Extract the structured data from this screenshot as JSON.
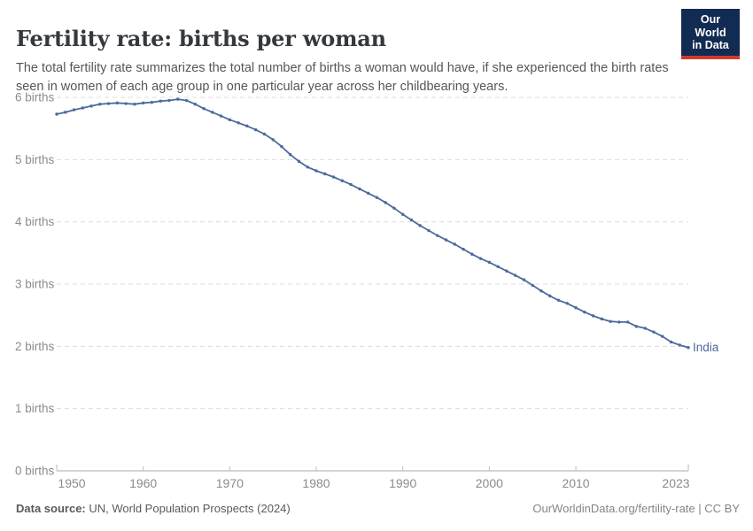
{
  "header": {
    "title": "Fertility rate: births per woman",
    "subtitle": "The total fertility rate summarizes the total number of births a woman would have, if she experienced the birth rates seen in women of each age group in one particular year across her childbearing years."
  },
  "logo": {
    "line1": "Our World",
    "line2": "in Data",
    "bg_color": "#122b52",
    "accent_color": "#cf3a31"
  },
  "footer": {
    "source_label": "Data source:",
    "source_value": " UN, World Population Prospects (2024)",
    "link_text": "OurWorldinData.org/fertility-rate",
    "separator": " | ",
    "license": "CC BY"
  },
  "colors": {
    "line": "#4c6a9c",
    "grid": "#dcdcdc",
    "axis": "#a8a8a8",
    "tick_text": "#8b8b8b"
  },
  "chart_data": {
    "type": "line",
    "title": "Fertility rate: births per woman",
    "entity": "India",
    "end_label": "India",
    "xlabel": "",
    "ylabel": "",
    "ylim": [
      0,
      6
    ],
    "xlim": [
      1950,
      2023
    ],
    "grid": "horizontal dashed",
    "legend_position": "end-of-line label",
    "y_ticks": [
      0,
      1,
      2,
      3,
      4,
      5,
      6
    ],
    "y_tick_labels": [
      "0 births",
      "1 births",
      "2 births",
      "3 births",
      "4 births",
      "5 births",
      "6 births"
    ],
    "x_ticks": [
      1950,
      1960,
      1970,
      1980,
      1990,
      2000,
      2010,
      2023
    ],
    "x": [
      1950,
      1951,
      1952,
      1953,
      1954,
      1955,
      1956,
      1957,
      1958,
      1959,
      1960,
      1961,
      1962,
      1963,
      1964,
      1965,
      1966,
      1967,
      1968,
      1969,
      1970,
      1971,
      1972,
      1973,
      1974,
      1975,
      1976,
      1977,
      1978,
      1979,
      1980,
      1981,
      1982,
      1983,
      1984,
      1985,
      1986,
      1987,
      1988,
      1989,
      1990,
      1991,
      1992,
      1993,
      1994,
      1995,
      1996,
      1997,
      1998,
      1999,
      2000,
      2001,
      2002,
      2003,
      2004,
      2005,
      2006,
      2007,
      2008,
      2009,
      2010,
      2011,
      2012,
      2013,
      2014,
      2015,
      2016,
      2017,
      2018,
      2019,
      2020,
      2021,
      2022,
      2023
    ],
    "series": [
      {
        "name": "India",
        "color": "#4c6a9c",
        "values": [
          5.73,
          5.76,
          5.8,
          5.83,
          5.86,
          5.89,
          5.9,
          5.91,
          5.9,
          5.89,
          5.91,
          5.92,
          5.94,
          5.95,
          5.97,
          5.95,
          5.89,
          5.82,
          5.76,
          5.7,
          5.64,
          5.59,
          5.54,
          5.48,
          5.41,
          5.32,
          5.21,
          5.08,
          4.97,
          4.88,
          4.82,
          4.77,
          4.72,
          4.66,
          4.6,
          4.53,
          4.46,
          4.39,
          4.31,
          4.22,
          4.12,
          4.03,
          3.94,
          3.86,
          3.78,
          3.71,
          3.64,
          3.56,
          3.48,
          3.41,
          3.35,
          3.28,
          3.21,
          3.14,
          3.07,
          2.98,
          2.89,
          2.81,
          2.74,
          2.69,
          2.62,
          2.55,
          2.49,
          2.44,
          2.4,
          2.39,
          2.39,
          2.32,
          2.29,
          2.23,
          2.16,
          2.07,
          2.02,
          1.98
        ]
      }
    ]
  }
}
